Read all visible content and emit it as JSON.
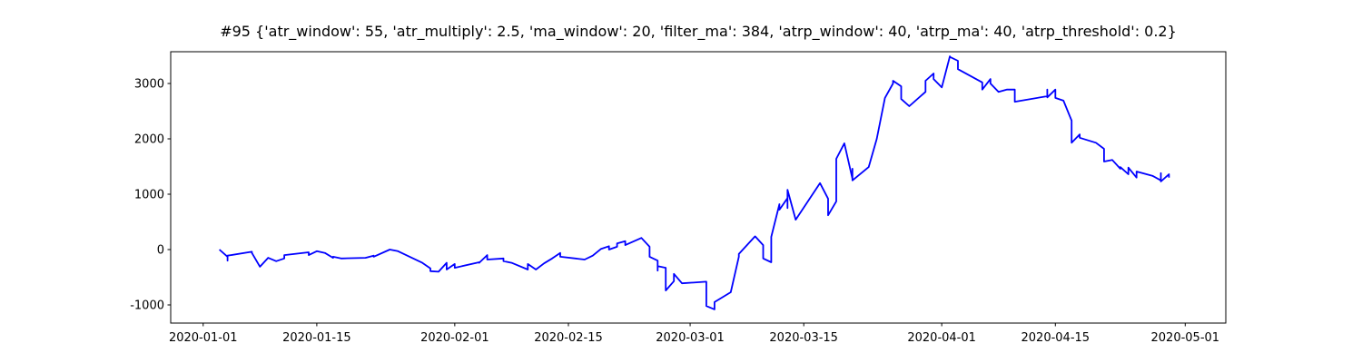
{
  "chart_data": {
    "type": "line",
    "title": "#95 {'atr_window': 55, 'atr_multiply': 2.5, 'ma_window': 20, 'filter_ma': 384, 'atrp_window': 40, 'atrp_ma': 40, 'atrp_threshold': 0.2}",
    "x": [
      "2020-01-03",
      "2020-01-04",
      "2020-01-04",
      "2020-01-04",
      "2020-01-07",
      "2020-01-07",
      "2020-01-08",
      "2020-01-09",
      "2020-01-10",
      "2020-01-11",
      "2020-01-11",
      "2020-01-14",
      "2020-01-14",
      "2020-01-15",
      "2020-01-16",
      "2020-01-17",
      "2020-01-17",
      "2020-01-18",
      "2020-01-21",
      "2020-01-22",
      "2020-01-22",
      "2020-01-24",
      "2020-01-25",
      "2020-01-28",
      "2020-01-29",
      "2020-01-29",
      "2020-01-30",
      "2020-01-31",
      "2020-01-31",
      "2020-02-01",
      "2020-02-01",
      "2020-02-04",
      "2020-02-04",
      "2020-02-05",
      "2020-02-05",
      "2020-02-07",
      "2020-02-07",
      "2020-02-08",
      "2020-02-10",
      "2020-02-10",
      "2020-02-11",
      "2020-02-12",
      "2020-02-13",
      "2020-02-14",
      "2020-02-14",
      "2020-02-17",
      "2020-02-18",
      "2020-02-19",
      "2020-02-20",
      "2020-02-20",
      "2020-02-21",
      "2020-02-21",
      "2020-02-22",
      "2020-02-22",
      "2020-02-24",
      "2020-02-25",
      "2020-02-25",
      "2020-02-26",
      "2020-02-26",
      "2020-02-26",
      "2020-02-27",
      "2020-02-27",
      "2020-02-28",
      "2020-02-28",
      "2020-02-29",
      "2020-03-03",
      "2020-03-03",
      "2020-03-03",
      "2020-03-04",
      "2020-03-04",
      "2020-03-06",
      "2020-03-07",
      "2020-03-07",
      "2020-03-09",
      "2020-03-10",
      "2020-03-10",
      "2020-03-11",
      "2020-03-11",
      "2020-03-12",
      "2020-03-12",
      "2020-03-13",
      "2020-03-13",
      "2020-03-13",
      "2020-03-14",
      "2020-03-17",
      "2020-03-18",
      "2020-03-18",
      "2020-03-19",
      "2020-03-19",
      "2020-03-20",
      "2020-03-21",
      "2020-03-21",
      "2020-03-21",
      "2020-03-23",
      "2020-03-24",
      "2020-03-25",
      "2020-03-26",
      "2020-03-26",
      "2020-03-27",
      "2020-03-27",
      "2020-03-28",
      "2020-03-30",
      "2020-03-30",
      "2020-03-31",
      "2020-03-31",
      "2020-04-01",
      "2020-04-02",
      "2020-04-02",
      "2020-04-03",
      "2020-04-03",
      "2020-04-06",
      "2020-04-06",
      "2020-04-07",
      "2020-04-07",
      "2020-04-08",
      "2020-04-09",
      "2020-04-10",
      "2020-04-10",
      "2020-04-14",
      "2020-04-14",
      "2020-04-14",
      "2020-04-15",
      "2020-04-15",
      "2020-04-16",
      "2020-04-17",
      "2020-04-17",
      "2020-04-17",
      "2020-04-18",
      "2020-04-18",
      "2020-04-20",
      "2020-04-21",
      "2020-04-21",
      "2020-04-21",
      "2020-04-21",
      "2020-04-22",
      "2020-04-23",
      "2020-04-23",
      "2020-04-24",
      "2020-04-24",
      "2020-04-25",
      "2020-04-25",
      "2020-04-27",
      "2020-04-28",
      "2020-04-28",
      "2020-04-28",
      "2020-04-29",
      "2020-04-29"
    ],
    "values": [
      0,
      -130,
      -200,
      -110,
      -40,
      -60,
      -310,
      -150,
      -210,
      -160,
      -100,
      -50,
      -100,
      -30,
      -60,
      -150,
      -130,
      -160,
      -150,
      -110,
      -130,
      0,
      -30,
      -240,
      -340,
      -390,
      -400,
      -240,
      -360,
      -260,
      -330,
      -230,
      -240,
      -100,
      -180,
      -160,
      -210,
      -240,
      -360,
      -260,
      -360,
      -250,
      -160,
      -60,
      -130,
      -180,
      -110,
      10,
      60,
      0,
      50,
      110,
      150,
      80,
      210,
      50,
      -130,
      -200,
      -380,
      -300,
      -330,
      -740,
      -570,
      -440,
      -610,
      -580,
      -870,
      -1020,
      -1080,
      -950,
      -770,
      -130,
      -80,
      240,
      80,
      -160,
      -230,
      230,
      820,
      720,
      930,
      750,
      1080,
      540,
      1200,
      920,
      620,
      870,
      1640,
      1920,
      1280,
      1460,
      1250,
      1490,
      2000,
      2740,
      3000,
      3050,
      2950,
      2720,
      2590,
      2850,
      3050,
      3180,
      3080,
      2930,
      3490,
      3480,
      3410,
      3260,
      3020,
      2890,
      3080,
      3000,
      2850,
      2890,
      2890,
      2670,
      2770,
      2890,
      2750,
      2890,
      2740,
      2690,
      2330,
      2210,
      1930,
      2080,
      2020,
      1930,
      1820,
      1620,
      1660,
      1590,
      1620,
      1460,
      1490,
      1360,
      1480,
      1300,
      1410,
      1330,
      1250,
      1380,
      1230,
      1360,
      1300
    ],
    "color": "#0000ff",
    "xlim": [
      "2019-12-28",
      "2020-05-06"
    ],
    "xticks": [
      "2020-01-01",
      "2020-01-15",
      "2020-02-01",
      "2020-02-15",
      "2020-03-01",
      "2020-03-15",
      "2020-04-01",
      "2020-04-15",
      "2020-05-01"
    ],
    "ylim": [
      -1328,
      3574
    ],
    "yticks": [
      -1000,
      0,
      1000,
      2000,
      3000
    ]
  }
}
